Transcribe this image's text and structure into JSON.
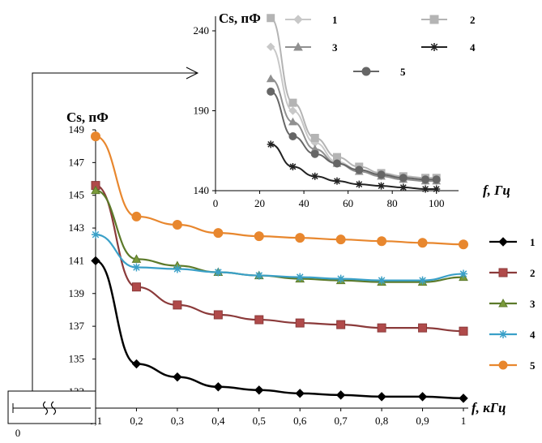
{
  "colors": {
    "main": [
      "#000000",
      "#8b3a3a",
      "#5c7a2a",
      "#3aa0c8",
      "#e8872e"
    ],
    "main_marker_fill": [
      "#000000",
      "#b04a4a",
      "#7a9a3a",
      "#3aa0c8",
      "#e8872e"
    ],
    "inset": [
      "#c8c8c8",
      "#b4b4b4",
      "#909090",
      "#222222",
      "#666666"
    ]
  },
  "chart_data": [
    {
      "type": "line",
      "xlabel": "f, кГц",
      "ylabel": "Cs, пФ",
      "xlim": [
        0.1,
        1
      ],
      "ylim": [
        132,
        149
      ],
      "x_ticks": [
        "0,1",
        "0,2",
        "0,3",
        "0,4",
        "0,5",
        "0,6",
        "0,7",
        "0,8",
        "0,9",
        "1"
      ],
      "y_ticks": [
        "133",
        "135",
        "137",
        "139",
        "141",
        "143",
        "145",
        "147",
        "149"
      ],
      "x": [
        0.1,
        0.2,
        0.3,
        0.4,
        0.5,
        0.6,
        0.7,
        0.8,
        0.9,
        1.0
      ],
      "series": [
        {
          "name": "1",
          "marker": "diamond",
          "values": [
            141.0,
            134.7,
            133.9,
            133.3,
            133.1,
            132.9,
            132.8,
            132.7,
            132.7,
            132.6
          ]
        },
        {
          "name": "2",
          "marker": "square",
          "values": [
            145.6,
            139.4,
            138.3,
            137.7,
            137.4,
            137.2,
            137.1,
            136.9,
            136.9,
            136.7
          ]
        },
        {
          "name": "3",
          "marker": "triangle",
          "values": [
            145.3,
            141.1,
            140.7,
            140.3,
            140.1,
            139.9,
            139.8,
            139.7,
            139.7,
            140.0
          ]
        },
        {
          "name": "4",
          "marker": "asterisk",
          "values": [
            142.6,
            140.6,
            140.5,
            140.3,
            140.1,
            140.0,
            139.9,
            139.8,
            139.8,
            140.2
          ]
        },
        {
          "name": "5",
          "marker": "circle",
          "values": [
            148.6,
            143.7,
            143.2,
            142.7,
            142.5,
            142.4,
            142.3,
            142.2,
            142.1,
            142.0
          ]
        }
      ],
      "break_mark": "0"
    },
    {
      "type": "line",
      "xlabel": "f, Гц",
      "ylabel": "Cs, пФ",
      "xlim": [
        0,
        110
      ],
      "ylim": [
        140,
        250
      ],
      "x_ticks": [
        "0",
        "20",
        "40",
        "60",
        "80",
        "100"
      ],
      "y_ticks": [
        "140",
        "190",
        "240"
      ],
      "x": [
        25,
        35,
        45,
        55,
        65,
        75,
        85,
        95,
        100
      ],
      "series": [
        {
          "name": "1",
          "marker": "diamond",
          "values": [
            230,
            190,
            170,
            158,
            153,
            149,
            147,
            146,
            146
          ]
        },
        {
          "name": "2",
          "marker": "square",
          "values": [
            248,
            195,
            173,
            161,
            155,
            151,
            149,
            148,
            148
          ]
        },
        {
          "name": "3",
          "marker": "triangle",
          "values": [
            210,
            183,
            166,
            157,
            152,
            149,
            147,
            146,
            146
          ]
        },
        {
          "name": "4",
          "marker": "asterisk",
          "values": [
            169,
            155,
            149,
            146,
            144,
            143,
            142,
            141,
            141
          ]
        },
        {
          "name": "5",
          "marker": "circle",
          "values": [
            202,
            174,
            163,
            157,
            153,
            150,
            148,
            147,
            147
          ]
        }
      ]
    }
  ]
}
